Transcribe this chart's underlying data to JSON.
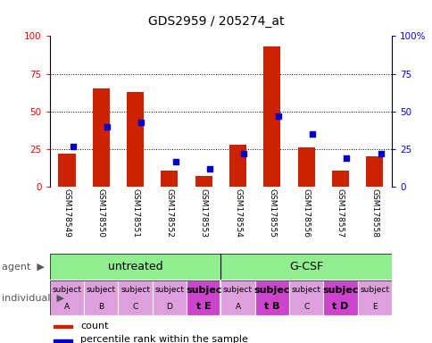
{
  "title": "GDS2959 / 205274_at",
  "samples": [
    "GSM178549",
    "GSM178550",
    "GSM178551",
    "GSM178552",
    "GSM178553",
    "GSM178554",
    "GSM178555",
    "GSM178556",
    "GSM178557",
    "GSM178558"
  ],
  "counts": [
    22,
    65,
    63,
    11,
    7,
    28,
    93,
    26,
    11,
    20
  ],
  "percentiles": [
    27,
    40,
    43,
    17,
    12,
    22,
    47,
    35,
    19,
    22
  ],
  "bar_color": "#cc2200",
  "dot_color": "#0000cc",
  "ylim": [
    0,
    100
  ],
  "y_ticks": [
    0,
    25,
    50,
    75,
    100
  ],
  "bg_color": "#ffffff",
  "plot_bg": "#ffffff",
  "sample_area_color": "#d3d3d3",
  "agent_color": "#90ee90",
  "indiv_colors": [
    "#dda0dd",
    "#dda0dd",
    "#dda0dd",
    "#dda0dd",
    "#cc44cc",
    "#dda0dd",
    "#cc44cc",
    "#dda0dd",
    "#cc44cc",
    "#dda0dd"
  ],
  "indiv_labels_line1": [
    "subject",
    "subject",
    "subject",
    "subject",
    "subjec",
    "subject",
    "subjec",
    "subject",
    "subjec",
    "subject"
  ],
  "indiv_labels_line2": [
    "A",
    "B",
    "C",
    "D",
    "t E",
    "A",
    "t B",
    "C",
    "t D",
    "E"
  ],
  "indiv_bold": [
    false,
    false,
    false,
    false,
    true,
    false,
    true,
    false,
    true,
    false
  ],
  "agent_labels": [
    "untreated",
    "G-CSF"
  ],
  "legend_count": "count",
  "legend_percentile": "percentile rank within the sample"
}
